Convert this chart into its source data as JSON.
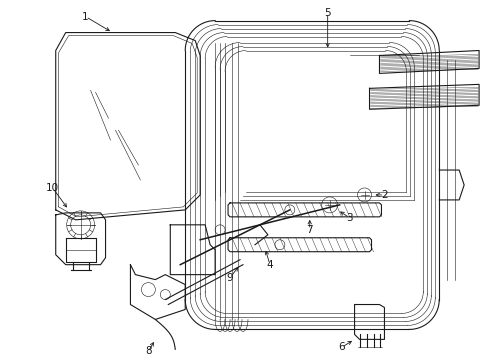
{
  "bg_color": "#ffffff",
  "line_color": "#1a1a1a",
  "lw": 0.8,
  "tlw": 0.4,
  "label_fs": 7.5
}
